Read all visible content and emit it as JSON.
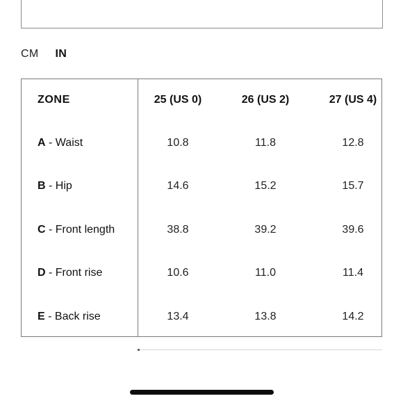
{
  "units": {
    "cm_label": "CM",
    "in_label": "IN",
    "selected": "IN"
  },
  "table": {
    "zone_header": "ZONE",
    "sizes": [
      "25 (US 0)",
      "26 (US 2)",
      "27 (US 4)"
    ],
    "rows": [
      {
        "letter": "A",
        "name": " - Waist",
        "values": [
          "10.8",
          "11.8",
          "12.8"
        ]
      },
      {
        "letter": "B",
        "name": " - Hip",
        "values": [
          "14.6",
          "15.2",
          "15.7"
        ]
      },
      {
        "letter": "C",
        "name": " - Front length",
        "values": [
          "38.8",
          "39.2",
          "39.6"
        ]
      },
      {
        "letter": "D",
        "name": " - Front rise",
        "values": [
          "10.6",
          "11.0",
          "11.4"
        ]
      },
      {
        "letter": "E",
        "name": " - Back rise",
        "values": [
          "13.4",
          "13.8",
          "14.2"
        ]
      }
    ]
  }
}
